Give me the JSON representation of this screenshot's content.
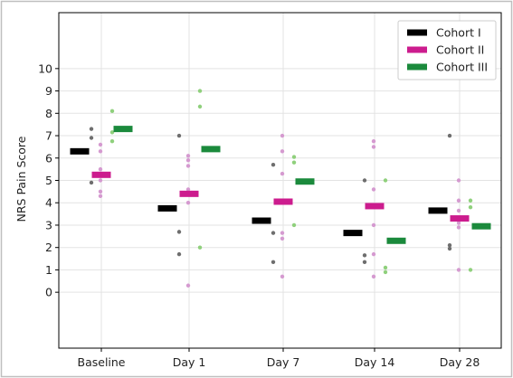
{
  "chart_data": {
    "type": "scatter",
    "title": "",
    "xlabel": "",
    "ylabel": "NRS Pain Score",
    "categories": [
      "Baseline",
      "Day 1",
      "Day 7",
      "Day 14",
      "Day 28"
    ],
    "yticks": [
      0,
      1,
      2,
      3,
      4,
      5,
      6,
      7,
      8,
      9,
      10
    ],
    "ylim": [
      -2.5,
      12.5
    ],
    "grid": true,
    "legend_position": "top-right",
    "series": [
      {
        "name": "Cohort I",
        "color": "#000000",
        "dot_color": "#6e6e6e",
        "means": [
          6.3,
          3.75,
          3.2,
          2.65,
          3.65
        ],
        "points": [
          [
            4.9,
            6.9,
            7.3
          ],
          [
            1.7,
            2.7,
            7.0
          ],
          [
            1.35,
            2.65,
            5.7
          ],
          [
            1.35,
            1.65,
            5.0
          ],
          [
            1.95,
            2.1,
            7.0
          ]
        ]
      },
      {
        "name": "Cohort II",
        "color": "#cc1c8e",
        "dot_color": "#d59ad0",
        "means": [
          5.25,
          4.4,
          4.05,
          3.85,
          3.3
        ],
        "points": [
          [
            4.3,
            4.5,
            5.0,
            5.5,
            6.3,
            6.6
          ],
          [
            0.3,
            4.0,
            4.6,
            5.65,
            5.9,
            6.1
          ],
          [
            0.7,
            2.4,
            2.65,
            5.3,
            6.3,
            7.0
          ],
          [
            0.7,
            1.7,
            3.0,
            4.6,
            6.5,
            6.75
          ],
          [
            1.0,
            2.9,
            3.1,
            3.65,
            4.1,
            5.0
          ]
        ]
      },
      {
        "name": "Cohort III",
        "color": "#1b8a3c",
        "dot_color": "#8fd07c",
        "means": [
          7.3,
          6.4,
          4.95,
          2.3,
          2.95
        ],
        "points": [
          [
            6.75,
            7.15,
            8.1
          ],
          [
            2.0,
            8.3,
            9.0
          ],
          [
            3.0,
            5.8,
            6.05
          ],
          [
            0.9,
            1.1,
            5.0
          ],
          [
            1.0,
            3.8,
            4.1
          ]
        ]
      }
    ]
  }
}
